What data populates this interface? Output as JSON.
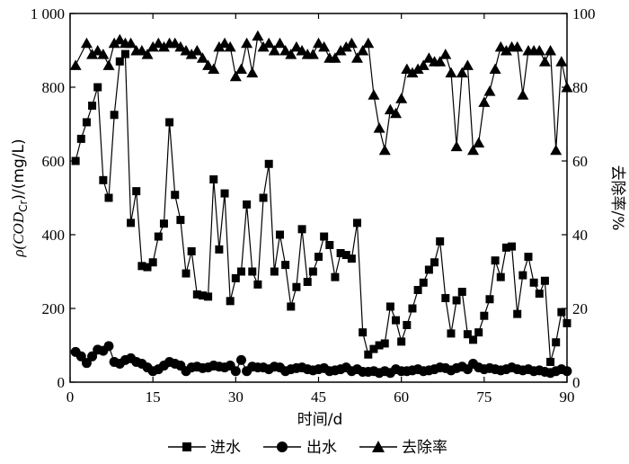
{
  "chart_data": {
    "type": "line",
    "xlabel": "时间/d",
    "ylabel_left": "ρ(COD",
    "ylabel_left_sub": "Cr",
    "ylabel_left_suffix": ")/(mg/L)",
    "ylabel_right": "去除率/%",
    "xlim": [
      0,
      90
    ],
    "ylim_left": [
      0,
      1000
    ],
    "ylim_right": [
      0,
      100
    ],
    "xticks": [
      0,
      15,
      30,
      45,
      60,
      75,
      90
    ],
    "xtick_labels": [
      "0",
      "15",
      "30",
      "45",
      "60",
      "75",
      "90"
    ],
    "yticks_left": [
      0,
      200,
      400,
      600,
      800,
      1000
    ],
    "ytick_labels_left": [
      "0",
      "200",
      "400",
      "600",
      "800",
      "1 000"
    ],
    "yticks_right": [
      0,
      20,
      40,
      60,
      80,
      100
    ],
    "ytick_labels_right": [
      "0",
      "20",
      "40",
      "60",
      "80",
      "100"
    ],
    "legend_position": "bottom",
    "series": [
      {
        "name": "进水",
        "axis": "left",
        "marker": "square",
        "x": [
          1,
          2,
          3,
          4,
          5,
          6,
          7,
          8,
          9,
          10,
          11,
          12,
          13,
          14,
          15,
          16,
          17,
          18,
          19,
          20,
          21,
          22,
          23,
          24,
          25,
          26,
          27,
          28,
          29,
          30,
          31,
          32,
          33,
          34,
          35,
          36,
          37,
          38,
          39,
          40,
          41,
          42,
          43,
          44,
          45,
          46,
          47,
          48,
          49,
          50,
          51,
          52,
          53,
          54,
          55,
          56,
          57,
          58,
          59,
          60,
          61,
          62,
          63,
          64,
          65,
          66,
          67,
          68,
          69,
          70,
          71,
          72,
          73,
          74,
          75,
          76,
          77,
          78,
          79,
          80,
          81,
          82,
          83,
          84,
          85,
          86,
          87,
          88,
          89,
          90
        ],
        "values": [
          600,
          660,
          705,
          750,
          800,
          548,
          500,
          725,
          870,
          890,
          432,
          518,
          315,
          312,
          325,
          395,
          430,
          705,
          508,
          440,
          295,
          355,
          238,
          235,
          232,
          550,
          360,
          512,
          220,
          282,
          300,
          482,
          300,
          265,
          500,
          592,
          300,
          400,
          318,
          205,
          258,
          415,
          272,
          300,
          340,
          395,
          372,
          285,
          350,
          345,
          335,
          432,
          135,
          75,
          90,
          100,
          105,
          205,
          168,
          110,
          155,
          200,
          250,
          270,
          305,
          325,
          382,
          228,
          132,
          222,
          245,
          130,
          115,
          135,
          180,
          225,
          330,
          285,
          365,
          368,
          185,
          290,
          340,
          270,
          240,
          275,
          55,
          108,
          190,
          160
        ]
      },
      {
        "name": "出水",
        "axis": "left",
        "marker": "circle",
        "x": [
          1,
          2,
          3,
          4,
          5,
          6,
          7,
          8,
          9,
          10,
          11,
          12,
          13,
          14,
          15,
          16,
          17,
          18,
          19,
          20,
          21,
          22,
          23,
          24,
          25,
          26,
          27,
          28,
          29,
          30,
          31,
          32,
          33,
          34,
          35,
          36,
          37,
          38,
          39,
          40,
          41,
          42,
          43,
          44,
          45,
          46,
          47,
          48,
          49,
          50,
          51,
          52,
          53,
          54,
          55,
          56,
          57,
          58,
          59,
          60,
          61,
          62,
          63,
          64,
          65,
          66,
          67,
          68,
          69,
          70,
          71,
          72,
          73,
          74,
          75,
          76,
          77,
          78,
          79,
          80,
          81,
          82,
          83,
          84,
          85,
          86,
          87,
          88,
          89,
          90
        ],
        "values": [
          82,
          70,
          52,
          70,
          88,
          85,
          98,
          55,
          50,
          60,
          65,
          55,
          50,
          40,
          30,
          35,
          45,
          55,
          50,
          45,
          30,
          40,
          42,
          38,
          40,
          45,
          42,
          40,
          45,
          30,
          60,
          30,
          42,
          40,
          40,
          35,
          42,
          40,
          30,
          35,
          38,
          40,
          35,
          32,
          35,
          38,
          30,
          32,
          35,
          40,
          30,
          35,
          28,
          28,
          30,
          25,
          30,
          25,
          35,
          30,
          30,
          32,
          35,
          30,
          32,
          35,
          40,
          38,
          32,
          38,
          42,
          35,
          50,
          40,
          35,
          38,
          35,
          32,
          35,
          40,
          35,
          32,
          35,
          30,
          32,
          28,
          25,
          30,
          35,
          30
        ]
      },
      {
        "name": "去除率",
        "axis": "right",
        "marker": "triangle",
        "x": [
          1,
          3,
          4,
          5,
          6,
          7,
          8,
          9,
          10,
          11,
          12,
          13,
          14,
          15,
          16,
          17,
          18,
          19,
          20,
          21,
          22,
          23,
          24,
          25,
          26,
          27,
          28,
          29,
          30,
          31,
          32,
          33,
          34,
          35,
          36,
          37,
          38,
          39,
          40,
          41,
          42,
          43,
          44,
          45,
          46,
          47,
          48,
          49,
          50,
          51,
          52,
          53,
          54,
          55,
          56,
          57,
          58,
          59,
          60,
          61,
          62,
          63,
          64,
          65,
          66,
          67,
          68,
          69,
          70,
          71,
          72,
          73,
          74,
          75,
          76,
          77,
          78,
          79,
          80,
          81,
          82,
          83,
          84,
          85,
          86,
          87,
          88,
          89,
          90
        ],
        "values": [
          86,
          92,
          89,
          90,
          89,
          86,
          92,
          93,
          92,
          92,
          90,
          90,
          89,
          91,
          92,
          91,
          92,
          92,
          91,
          90,
          89,
          90,
          88,
          86,
          85,
          91,
          92,
          91,
          83,
          85,
          92,
          84,
          94,
          91,
          92,
          90,
          92,
          90,
          89,
          91,
          90,
          89,
          89,
          92,
          91,
          88,
          88,
          90,
          91,
          92,
          88,
          90,
          92,
          78,
          69,
          63,
          74,
          73,
          77,
          85,
          84,
          85,
          86,
          88,
          87,
          87,
          89,
          84,
          64,
          84,
          86,
          63,
          65,
          76,
          79,
          85,
          91,
          90,
          91,
          91,
          78,
          90,
          90,
          90,
          87,
          90,
          63,
          87,
          80
        ]
      }
    ]
  }
}
